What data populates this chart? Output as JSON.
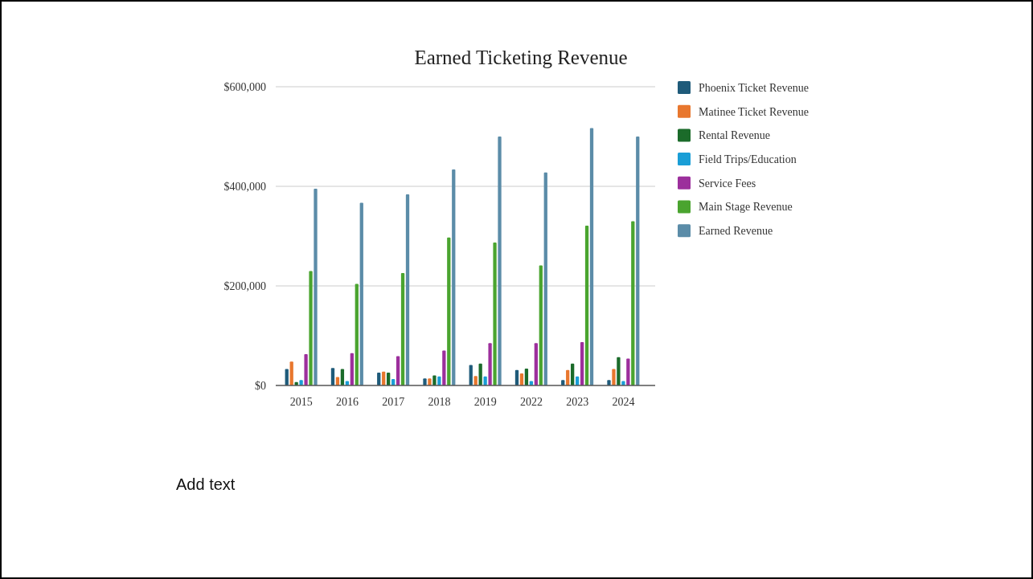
{
  "chart_data": {
    "type": "bar",
    "title": "Earned Ticketing Revenue",
    "categories": [
      "2015",
      "2016",
      "2017",
      "2018",
      "2019",
      "2022",
      "2023",
      "2024"
    ],
    "series": [
      {
        "name": "Phoenix Ticket Revenue",
        "color": "#1f5b7a",
        "values": [
          33000,
          35000,
          26000,
          14000,
          41000,
          31000,
          11000,
          11000
        ]
      },
      {
        "name": "Matinee Ticket Revenue",
        "color": "#e8772e",
        "values": [
          48000,
          17000,
          28000,
          14000,
          19000,
          24000,
          31000,
          33000
        ]
      },
      {
        "name": "Rental Revenue",
        "color": "#1b6b2a",
        "values": [
          7000,
          33000,
          26000,
          20000,
          44000,
          34000,
          44000,
          57000
        ]
      },
      {
        "name": "Field Trips/Education",
        "color": "#1a9ed6",
        "values": [
          11000,
          9000,
          13000,
          18000,
          18000,
          9000,
          18000,
          9000
        ]
      },
      {
        "name": "Service Fees",
        "color": "#9c2f9c",
        "values": [
          63000,
          65000,
          59000,
          70000,
          85000,
          85000,
          87000,
          54000
        ]
      },
      {
        "name": "Main Stage Revenue",
        "color": "#4aa42f",
        "values": [
          230000,
          204000,
          226000,
          297000,
          287000,
          241000,
          321000,
          330000
        ]
      },
      {
        "name": "Earned Revenue",
        "color": "#5b8ca8",
        "values": [
          395000,
          367000,
          384000,
          434000,
          500000,
          428000,
          517000,
          500000
        ]
      }
    ],
    "ylim": [
      0,
      600000
    ],
    "yticks": [
      {
        "value": 0,
        "label": "$0"
      },
      {
        "value": 200000,
        "label": "$200,000"
      },
      {
        "value": 400000,
        "label": "$400,000"
      },
      {
        "value": 600000,
        "label": "$600,000"
      }
    ],
    "grid": "y",
    "legend": "top right",
    "annotations": [
      "Add text"
    ]
  }
}
